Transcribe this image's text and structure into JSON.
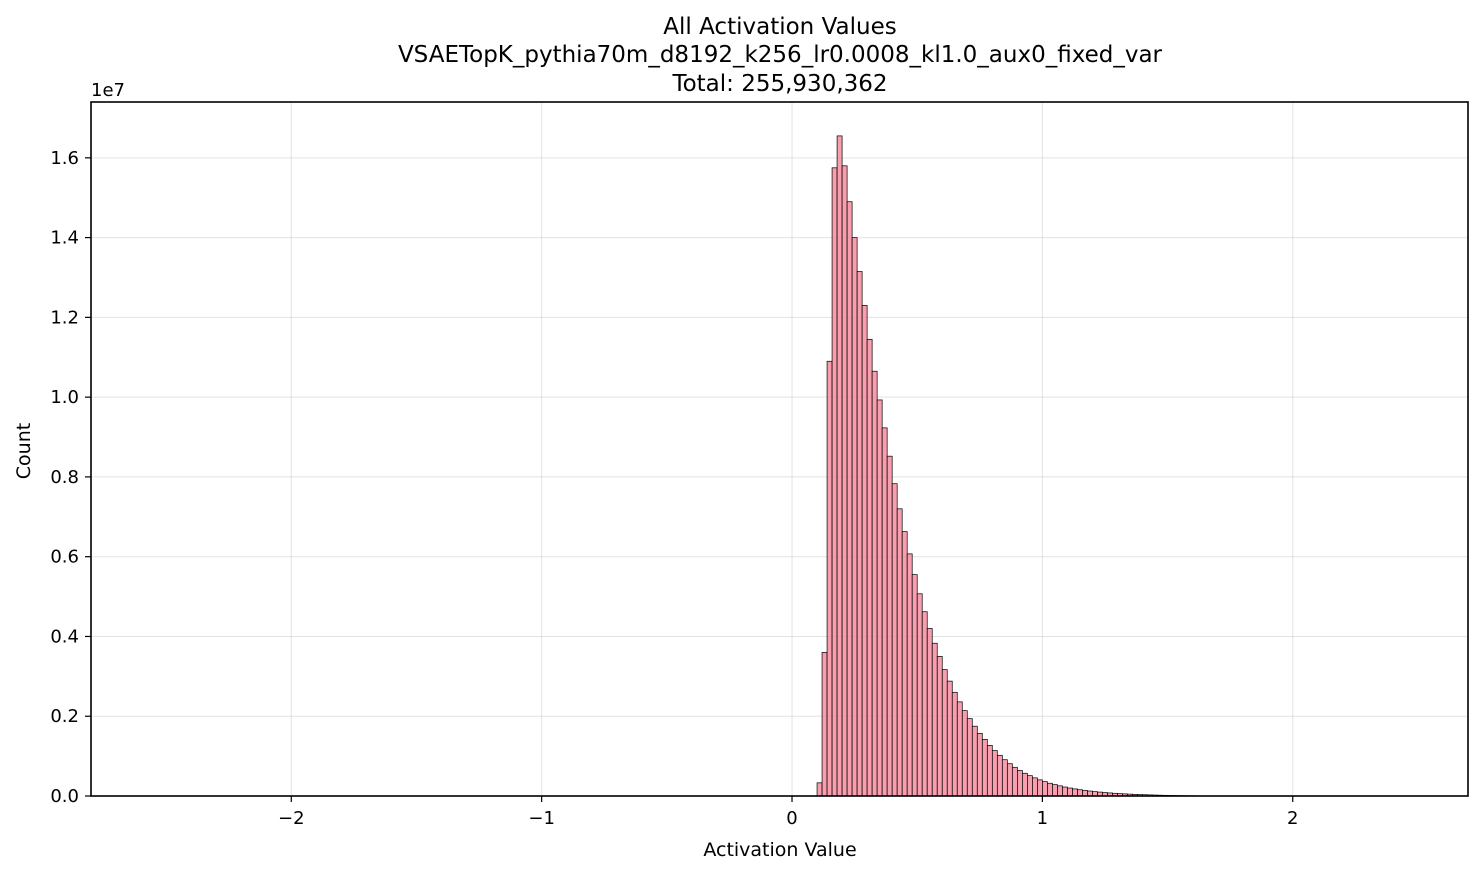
{
  "chart_data": {
    "type": "bar",
    "title_lines": [
      "All Activation Values",
      "VSAETopK_pythia70m_d8192_k256_lr0.0008_kl1.0_aux0_fixed_var",
      "Total: 255,930,362"
    ],
    "xlabel": "Activation Value",
    "ylabel": "Count",
    "y_offset_label": "1e7",
    "xlim": [
      -2.8,
      2.7
    ],
    "ylim": [
      0,
      17400000
    ],
    "x_ticks": [
      -2,
      -1,
      0,
      1,
      2
    ],
    "x_tick_labels": [
      "−2",
      "−1",
      "0",
      "1",
      "2"
    ],
    "y_ticks": [
      0,
      2000000,
      4000000,
      6000000,
      8000000,
      10000000,
      12000000,
      14000000,
      16000000
    ],
    "y_tick_labels": [
      "0.0",
      "0.2",
      "0.4",
      "0.6",
      "0.8",
      "1.0",
      "1.2",
      "1.4",
      "1.6"
    ],
    "grid": true,
    "bar_color": "#f7899c",
    "bin_start": 0.1,
    "bin_width": 0.02,
    "values": [
      330000,
      3600000,
      10900000,
      15750000,
      16550000,
      15800000,
      14900000,
      14000000,
      13150000,
      12300000,
      11450000,
      10650000,
      9930000,
      9230000,
      8520000,
      7830000,
      7200000,
      6630000,
      6070000,
      5550000,
      5070000,
      4620000,
      4200000,
      3830000,
      3500000,
      3170000,
      2880000,
      2600000,
      2360000,
      2140000,
      1940000,
      1750000,
      1570000,
      1420000,
      1270000,
      1140000,
      1020000,
      910000,
      810000,
      720000,
      640000,
      570000,
      510000,
      455000,
      405000,
      360000,
      320000,
      285000,
      255000,
      225000,
      200000,
      178000,
      158000,
      140000,
      124000,
      110000,
      98000,
      87000,
      77000,
      68000,
      60000,
      53000,
      47000,
      41000,
      36000,
      32000,
      28000,
      24000,
      20000,
      17000,
      14000,
      12000,
      10000,
      8000,
      6000,
      5000,
      4000,
      3000,
      2500,
      2000,
      1500,
      1200
    ]
  }
}
